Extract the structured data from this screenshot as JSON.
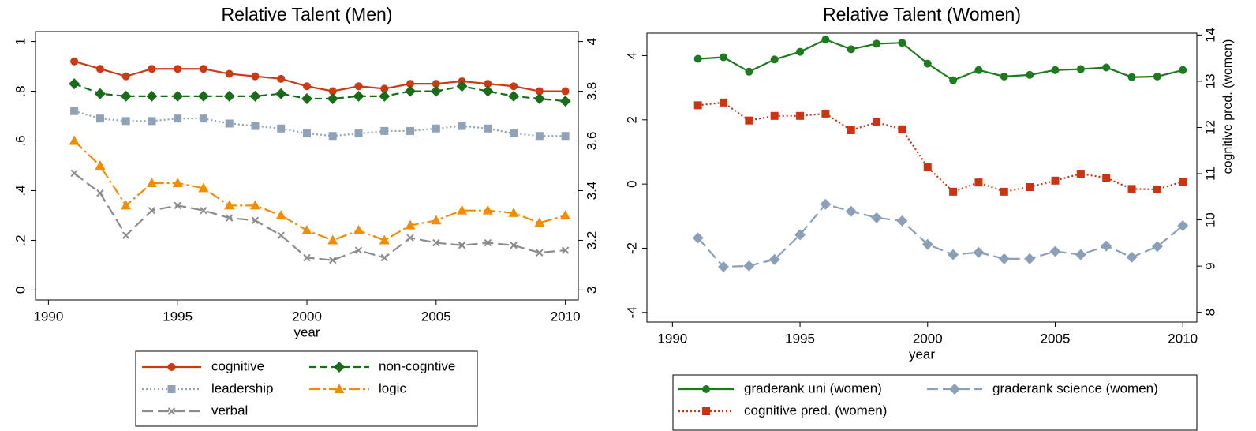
{
  "chart_data": [
    {
      "type": "line",
      "title": "Relative Talent (Men)",
      "x_label": "year",
      "x": [
        1991,
        1992,
        1993,
        1994,
        1995,
        1996,
        1997,
        1998,
        1999,
        2000,
        2001,
        2002,
        2003,
        2004,
        2005,
        2006,
        2007,
        2008,
        2009,
        2010
      ],
      "xlim": [
        1989.5,
        2010.5
      ],
      "xticks": [
        1990,
        1995,
        2000,
        2005,
        2010
      ],
      "ylim": [
        -0.04,
        1.04
      ],
      "yticks": [
        0,
        {
          "value": 0.2,
          "label": ".2"
        },
        {
          "value": 0.4,
          "label": ".4"
        },
        {
          "value": 0.6,
          "label": ".6"
        },
        {
          "value": 0.8,
          "label": ".8"
        },
        1
      ],
      "y2lim": [
        2.96,
        4.04
      ],
      "y2ticks": [
        3,
        3.2,
        3.4,
        3.6,
        3.8,
        4
      ],
      "grid": false,
      "legend": "bottom",
      "series": [
        {
          "name": "cognitive",
          "color": "#cc3a14",
          "marker": "circle",
          "dash": "solid",
          "values": [
            0.92,
            0.89,
            0.86,
            0.89,
            0.89,
            0.89,
            0.87,
            0.86,
            0.85,
            0.82,
            0.8,
            0.82,
            0.81,
            0.83,
            0.83,
            0.84,
            0.83,
            0.82,
            0.8,
            0.8
          ]
        },
        {
          "name": "non-cogntive",
          "color": "#1a6b1a",
          "marker": "diamond",
          "dash": "dashed",
          "values": [
            0.83,
            0.79,
            0.78,
            0.78,
            0.78,
            0.78,
            0.78,
            0.78,
            0.79,
            0.77,
            0.77,
            0.78,
            0.78,
            0.8,
            0.8,
            0.82,
            0.8,
            0.78,
            0.77,
            0.76
          ]
        },
        {
          "name": "leadership",
          "color": "#8fa2b8",
          "marker": "square",
          "dash": "dotted",
          "values": [
            0.72,
            0.69,
            0.68,
            0.68,
            0.69,
            0.69,
            0.67,
            0.66,
            0.65,
            0.63,
            0.62,
            0.63,
            0.64,
            0.64,
            0.65,
            0.66,
            0.65,
            0.63,
            0.62,
            0.62
          ]
        },
        {
          "name": "logic",
          "color": "#f28c00",
          "marker": "triangle",
          "dash": "dashdot",
          "values": [
            0.6,
            0.5,
            0.34,
            0.43,
            0.43,
            0.41,
            0.34,
            0.34,
            0.3,
            0.24,
            0.2,
            0.24,
            0.2,
            0.26,
            0.28,
            0.32,
            0.32,
            0.31,
            0.27,
            0.3
          ]
        },
        {
          "name": "verbal",
          "color": "#8c8c8c",
          "marker": "x",
          "dash": "longdash",
          "values": [
            0.47,
            0.39,
            0.22,
            0.32,
            0.34,
            0.32,
            0.29,
            0.28,
            0.22,
            0.13,
            0.12,
            0.16,
            0.13,
            0.21,
            0.19,
            0.18,
            0.19,
            0.18,
            0.15,
            0.16
          ]
        }
      ]
    },
    {
      "type": "line",
      "title": "Relative Talent (Women)",
      "x_label": "year",
      "y2_label": "cognitive pred. (women)",
      "x": [
        1991,
        1992,
        1993,
        1994,
        1995,
        1996,
        1997,
        1998,
        1999,
        2000,
        2001,
        2002,
        2003,
        2004,
        2005,
        2006,
        2007,
        2008,
        2009,
        2010
      ],
      "xlim": [
        1989,
        2010.55
      ],
      "xticks": [
        1990,
        1995,
        2000,
        2005,
        2010
      ],
      "ylim": [
        -4.3,
        4.7
      ],
      "yticks": [
        -4,
        -2,
        0,
        2,
        4
      ],
      "y2lim": [
        7.79,
        14.04
      ],
      "y2ticks": [
        8,
        9,
        10,
        11,
        12,
        13,
        14
      ],
      "grid": false,
      "legend": "bottom",
      "series": [
        {
          "name": "graderank uni (women)",
          "color": "#1e7a1e",
          "marker": "circle",
          "dash": "solid",
          "values": [
            3.9,
            3.95,
            3.5,
            3.88,
            4.12,
            4.5,
            4.2,
            4.37,
            4.4,
            3.75,
            3.23,
            3.55,
            3.35,
            3.4,
            3.55,
            3.58,
            3.63,
            3.33,
            3.35,
            3.55
          ]
        },
        {
          "name": "graderank science (women)",
          "color": "#8aa0b8",
          "marker": "diamond",
          "dash": "longdash",
          "values": [
            -1.68,
            -2.58,
            -2.55,
            -2.35,
            -1.58,
            -0.63,
            -0.85,
            -1.05,
            -1.15,
            -1.88,
            -2.2,
            -2.13,
            -2.33,
            -2.33,
            -2.1,
            -2.2,
            -1.93,
            -2.28,
            -1.95,
            -1.3
          ]
        },
        {
          "name": "cognitive pred. (women)",
          "color": "#cc3311",
          "marker": "square",
          "dash": "dotted",
          "axis": "y2",
          "values": [
            12.48,
            12.54,
            12.15,
            12.25,
            12.25,
            12.3,
            11.94,
            12.11,
            11.96,
            11.14,
            10.61,
            10.81,
            10.61,
            10.71,
            10.85,
            11.0,
            10.91,
            10.67,
            10.66,
            10.83
          ]
        }
      ]
    }
  ]
}
